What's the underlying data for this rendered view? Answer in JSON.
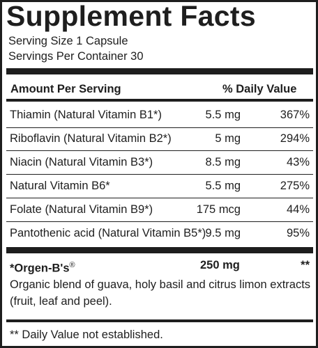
{
  "title": "Supplement Facts",
  "serving_size": "Serving Size 1 Capsule",
  "servings_per_container": "Servings Per Container 30",
  "header": {
    "amount_per_serving": "Amount Per Serving",
    "daily_value": "% Daily Value"
  },
  "nutrients": [
    {
      "name": "Thiamin (Natural Vitamin B1*)",
      "amount": "5.5 mg",
      "dv": "367%"
    },
    {
      "name": "Riboflavin (Natural Vitamin B2*)",
      "amount": "5 mg",
      "dv": "294%"
    },
    {
      "name": "Niacin (Natural Vitamin B3*)",
      "amount": "8.5 mg",
      "dv": "43%"
    },
    {
      "name": "Natural Vitamin B6*",
      "amount": "5.5 mg",
      "dv": "275%"
    },
    {
      "name": "Folate (Natural Vitamin B9*)",
      "amount": "175 mcg",
      "dv": "44%"
    },
    {
      "name": "Pantothenic acid (Natural Vitamin B5*)",
      "amount": "9.5 mg",
      "dv": "95%"
    }
  ],
  "blend": {
    "name": "*Orgen-B's",
    "trademark": "®",
    "amount": "250 mg",
    "dv": "**",
    "description": "Organic blend of guava, holy basil and citrus limon extracts (fruit, leaf and peel)."
  },
  "footnote": "** Daily Value not established."
}
